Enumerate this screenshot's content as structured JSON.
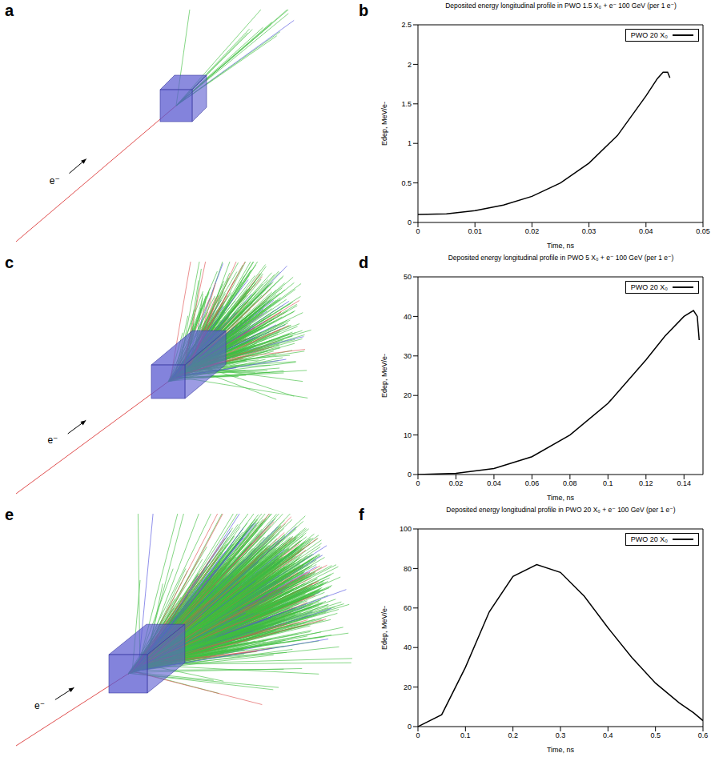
{
  "chart_data": [
    {
      "panel": "b",
      "type": "line",
      "title": "Deposited energy longitudinal profile in PWO 1.5 X₀ + e⁻ 100 GeV (per 1 e⁻)",
      "x_label": "Time, ns",
      "y_label": "Edep, MeV/e-",
      "xlim": [
        0,
        0.05
      ],
      "xticks": [
        0,
        0.01,
        0.02,
        0.03,
        0.04,
        0.05
      ],
      "ylim": [
        0,
        2.5
      ],
      "yticks": [
        0,
        0.5,
        1,
        1.5,
        2,
        2.5
      ],
      "grid": false,
      "legend": "upper right",
      "x": [
        0,
        0.005,
        0.01,
        0.015,
        0.02,
        0.025,
        0.03,
        0.035,
        0.04,
        0.042,
        0.043,
        0.0438,
        0.0442
      ],
      "series": [
        {
          "name": "PWO 20 X₀",
          "color": "#000000",
          "values": [
            0.1,
            0.11,
            0.15,
            0.22,
            0.33,
            0.5,
            0.75,
            1.1,
            1.6,
            1.82,
            1.9,
            1.9,
            1.83
          ]
        }
      ]
    },
    {
      "panel": "d",
      "type": "line",
      "title": "Deposited energy longitudinal profile in PWO 5 X₀ + e⁻ 100 GeV (per 1 e⁻)",
      "x_label": "Time, ns",
      "y_label": "Edep, MeV/e-",
      "xlim": [
        0,
        0.15
      ],
      "xticks": [
        0,
        0.02,
        0.04,
        0.06,
        0.08,
        0.1,
        0.12,
        0.14
      ],
      "ylim": [
        0,
        50
      ],
      "yticks": [
        0,
        10,
        20,
        30,
        40,
        50
      ],
      "grid": false,
      "legend": "upper right",
      "x": [
        0,
        0.02,
        0.04,
        0.06,
        0.08,
        0.1,
        0.12,
        0.13,
        0.14,
        0.145,
        0.147,
        0.148
      ],
      "series": [
        {
          "name": "PWO 20 X₀",
          "color": "#000000",
          "values": [
            0,
            0.3,
            1.5,
            4.5,
            10,
            18,
            29,
            35,
            40,
            41.5,
            40,
            34
          ]
        }
      ]
    },
    {
      "panel": "f",
      "type": "line",
      "title": "Deposited energy longitudinal profile in PWO 20 X₀ + e⁻ 100 GeV (per 1 e⁻)",
      "x_label": "Time, ns",
      "y_label": "Edep, MeV/e-",
      "xlim": [
        0,
        0.6
      ],
      "xticks": [
        0,
        0.1,
        0.2,
        0.3,
        0.4,
        0.5,
        0.6
      ],
      "ylim": [
        0,
        100
      ],
      "yticks": [
        0,
        20,
        40,
        60,
        80,
        100
      ],
      "grid": false,
      "legend": "upper right",
      "x": [
        0,
        0.05,
        0.1,
        0.15,
        0.2,
        0.25,
        0.3,
        0.35,
        0.4,
        0.45,
        0.5,
        0.55,
        0.58,
        0.6
      ],
      "series": [
        {
          "name": "PWO 20 X₀",
          "color": "#000000",
          "values": [
            0,
            6,
            30,
            58,
            76,
            82,
            78,
            66,
            50,
            35,
            22,
            12,
            7,
            3
          ]
        }
      ]
    }
  ],
  "illustrations": [
    {
      "panel": "a",
      "label": "e⁻"
    },
    {
      "panel": "c",
      "label": "e⁻"
    },
    {
      "panel": "e",
      "label": "e⁻"
    }
  ]
}
